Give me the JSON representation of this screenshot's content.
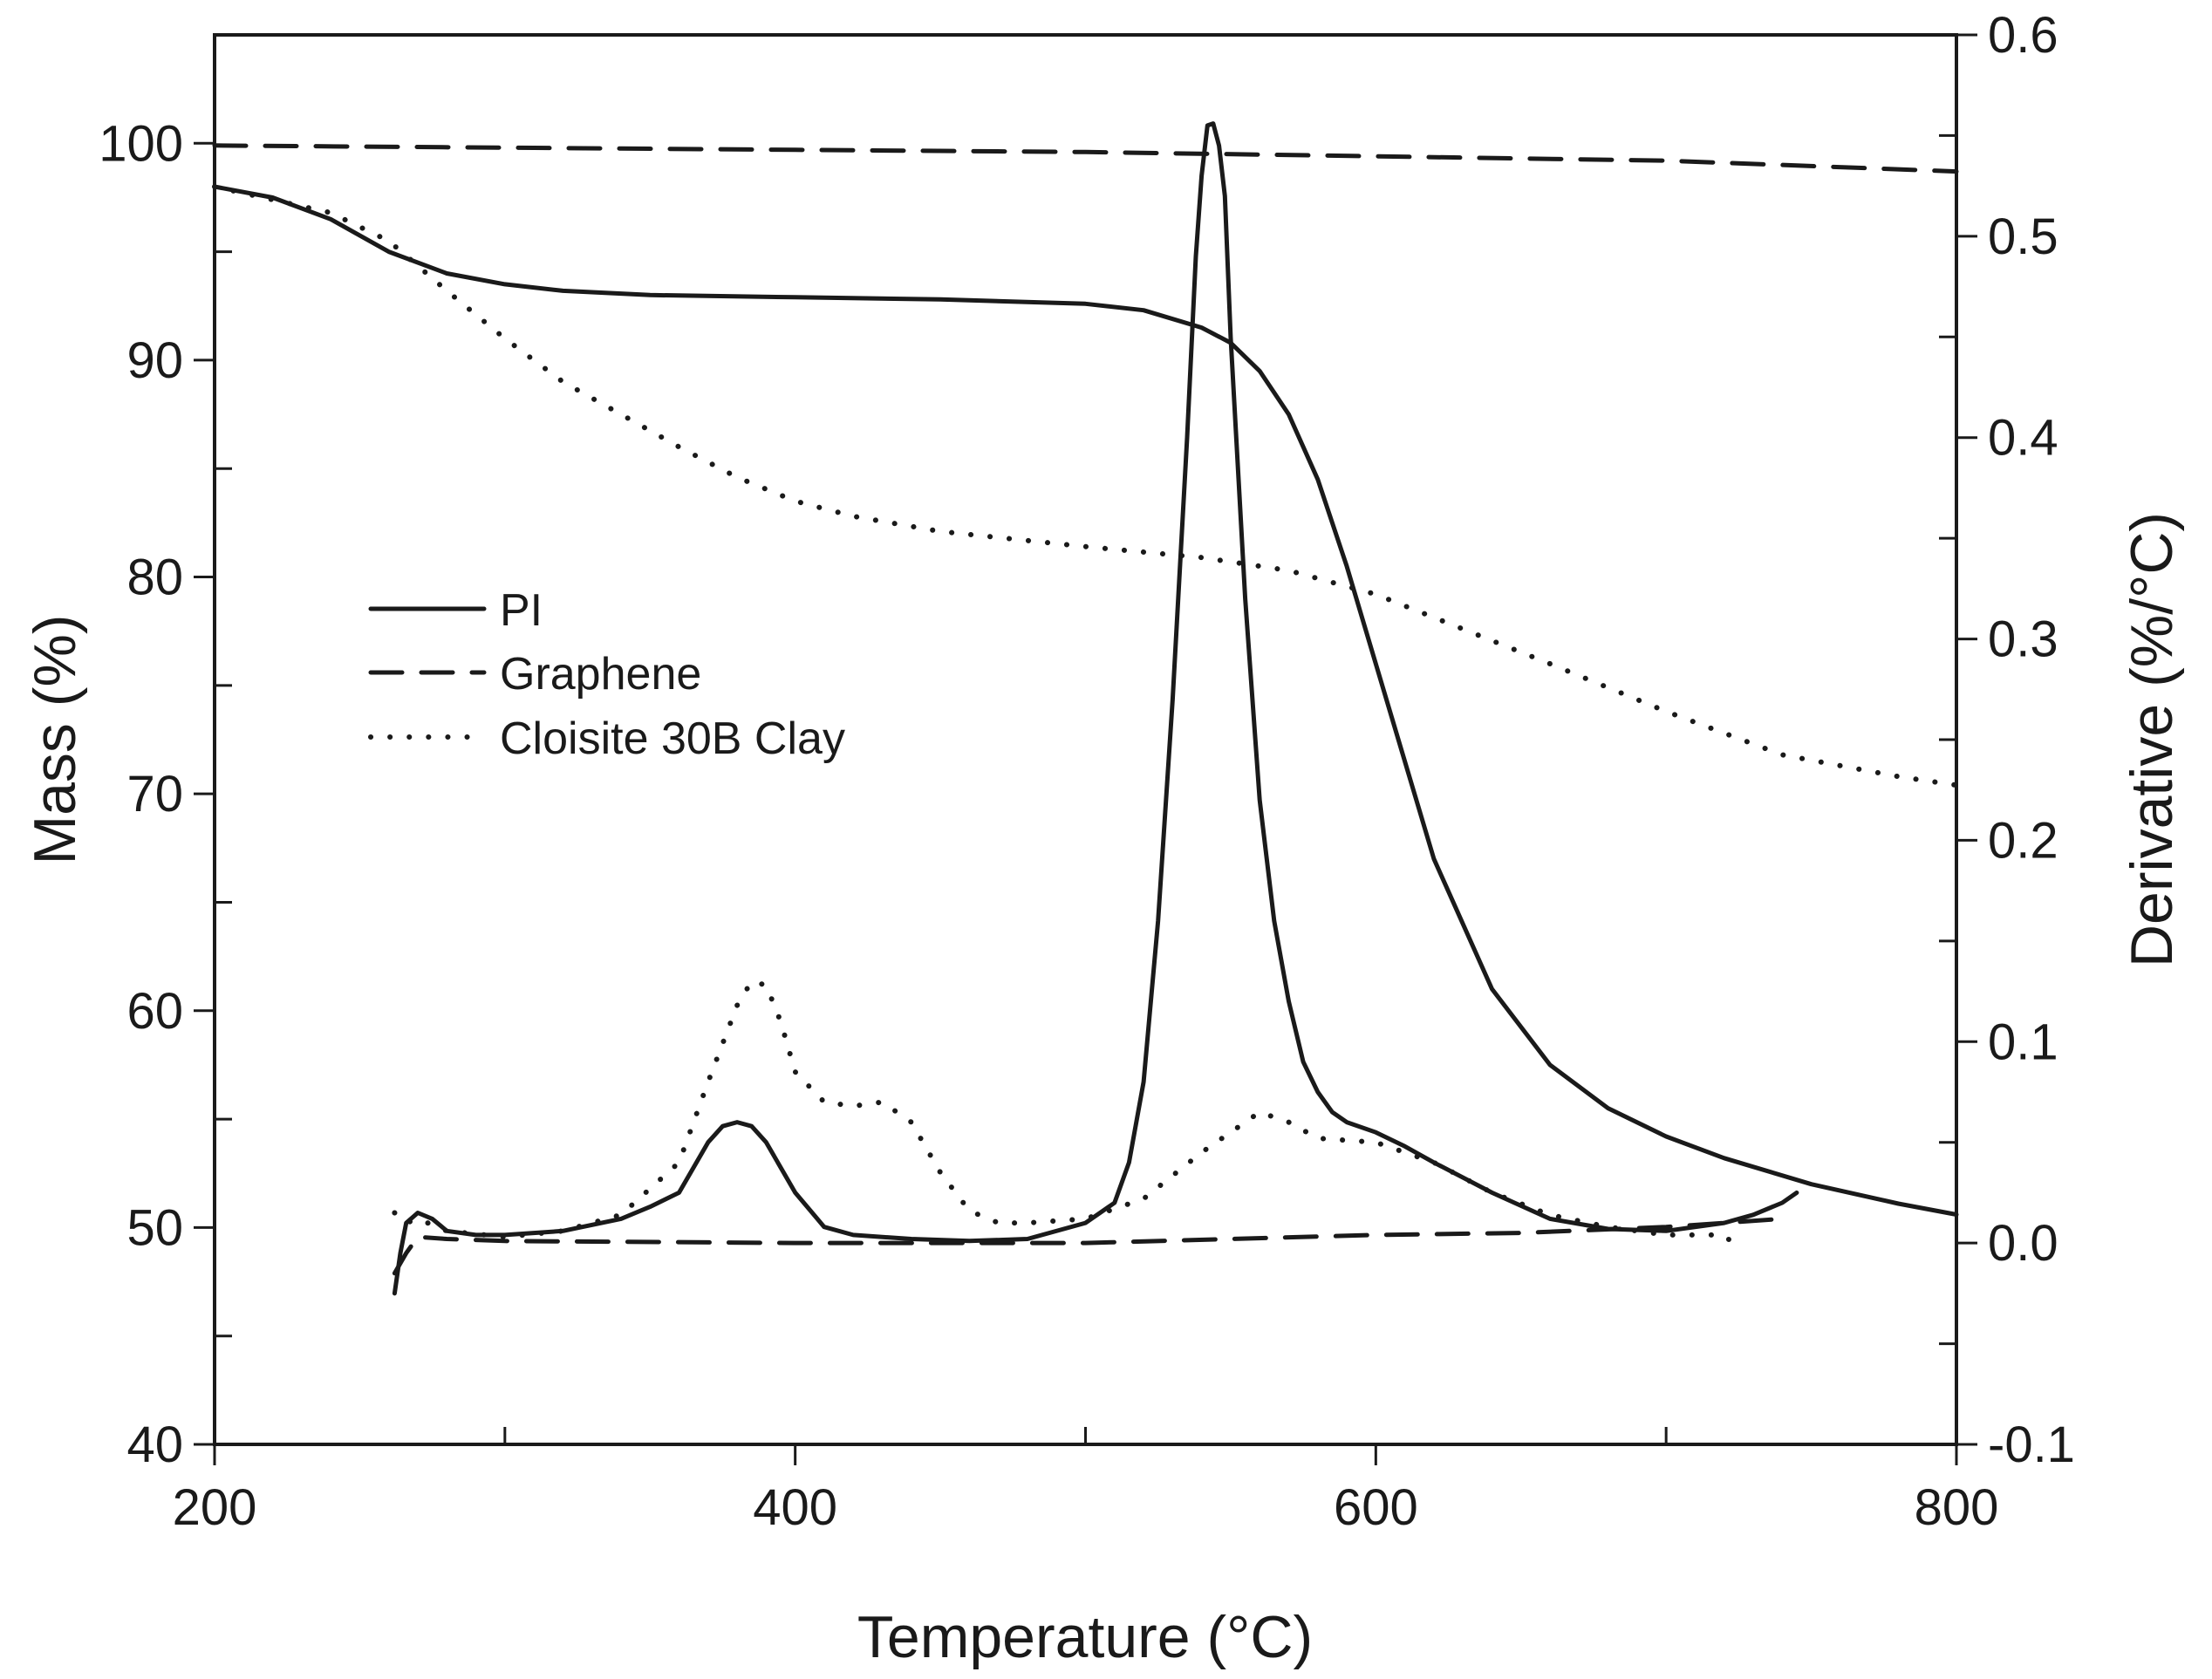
{
  "chart_data": {
    "type": "line",
    "xlabel": "Temperature (°C)",
    "ylabel_left": "Mass  (%)",
    "ylabel_right": "Derivative (%/°C)",
    "xlim": [
      200,
      800
    ],
    "ylim_left": [
      40,
      105
    ],
    "ylim_right": [
      -0.1,
      0.6
    ],
    "x_ticks": [
      "200",
      "400",
      "600",
      "800"
    ],
    "y_left_ticks": [
      "40",
      "50",
      "60",
      "70",
      "80",
      "90",
      "100"
    ],
    "y_right_ticks": [
      "-0.1",
      "0.0",
      "0.1",
      "0.2",
      "0.3",
      "0.4",
      "0.5",
      "0.6"
    ],
    "legend": [
      {
        "name": "PI",
        "style": "solid"
      },
      {
        "name": "Graphene",
        "style": "dashed"
      },
      {
        "name": "Cloisite 30B Clay",
        "style": "dotted"
      }
    ],
    "legend_position": "left-middle",
    "series": [
      {
        "name": "PI",
        "kind": "mass",
        "axis": "left",
        "style": "solid",
        "x": [
          200,
          220,
          240,
          260,
          280,
          300,
          320,
          350,
          400,
          450,
          500,
          520,
          540,
          550,
          560,
          570,
          580,
          590,
          600,
          610,
          620,
          640,
          660,
          680,
          700,
          720,
          750,
          780,
          800
        ],
        "y": [
          98,
          97.5,
          96.5,
          95,
          94,
          93.5,
          93.2,
          93,
          92.9,
          92.8,
          92.6,
          92.3,
          91.5,
          90.8,
          89.5,
          87.5,
          84.5,
          80.5,
          76,
          71.5,
          67,
          61,
          57.5,
          55.5,
          54.2,
          53.2,
          52,
          51.1,
          50.6
        ]
      },
      {
        "name": "Graphene",
        "kind": "mass",
        "axis": "left",
        "style": "dashed",
        "x": [
          200,
          300,
          400,
          500,
          600,
          700,
          800
        ],
        "y": [
          99.9,
          99.8,
          99.7,
          99.6,
          99.4,
          99.2,
          98.7
        ]
      },
      {
        "name": "Cloisite 30B Clay",
        "kind": "mass",
        "axis": "left",
        "style": "dotted",
        "x": [
          200,
          240,
          260,
          280,
          300,
          320,
          340,
          360,
          380,
          400,
          420,
          450,
          500,
          540,
          570,
          600,
          630,
          660,
          700,
          740,
          780,
          800
        ],
        "y": [
          98,
          96.8,
          95.5,
          93.2,
          91,
          89,
          87.5,
          86,
          84.6,
          83.5,
          82.8,
          82.1,
          81.4,
          80.9,
          80.3,
          79.2,
          77.6,
          76,
          73.8,
          71.8,
          70.8,
          70.4
        ]
      },
      {
        "name": "PI",
        "kind": "derivative",
        "axis": "right",
        "style": "solid",
        "x": [
          262,
          264,
          266,
          270,
          275,
          280,
          290,
          300,
          320,
          340,
          350,
          360,
          370,
          375,
          380,
          385,
          390,
          400,
          410,
          420,
          440,
          460,
          480,
          500,
          510,
          515,
          520,
          525,
          530,
          535,
          538,
          540,
          542,
          544,
          546,
          548,
          550,
          555,
          560,
          565,
          570,
          575,
          580,
          585,
          590,
          600,
          610,
          620,
          640,
          660,
          680,
          700,
          720,
          730,
          740,
          745
        ],
        "y": [
          -0.025,
          -0.005,
          0.01,
          0.015,
          0.012,
          0.006,
          0.004,
          0.004,
          0.006,
          0.012,
          0.018,
          0.025,
          0.05,
          0.058,
          0.06,
          0.058,
          0.05,
          0.025,
          0.008,
          0.004,
          0.002,
          0.001,
          0.002,
          0.01,
          0.02,
          0.04,
          0.08,
          0.16,
          0.27,
          0.4,
          0.49,
          0.53,
          0.555,
          0.556,
          0.545,
          0.52,
          0.45,
          0.32,
          0.22,
          0.16,
          0.12,
          0.09,
          0.075,
          0.065,
          0.06,
          0.055,
          0.048,
          0.04,
          0.025,
          0.012,
          0.007,
          0.006,
          0.01,
          0.014,
          0.02,
          0.025
        ]
      },
      {
        "name": "Graphene",
        "kind": "derivative",
        "axis": "right",
        "style": "dashed",
        "x": [
          262,
          266,
          270,
          280,
          300,
          400,
          500,
          550,
          600,
          650,
          700,
          740
        ],
        "y": [
          -0.015,
          -0.005,
          0.003,
          0.002,
          0.001,
          0,
          0,
          0.002,
          0.004,
          0.005,
          0.008,
          0.012
        ]
      },
      {
        "name": "Cloisite 30B Clay",
        "kind": "derivative",
        "axis": "right",
        "style": "dotted",
        "x": [
          262,
          266,
          270,
          280,
          300,
          320,
          340,
          360,
          370,
          380,
          385,
          390,
          395,
          400,
          410,
          420,
          430,
          440,
          450,
          460,
          470,
          480,
          500,
          520,
          540,
          560,
          570,
          580,
          600,
          620,
          640,
          660,
          680,
          700,
          720,
          725
        ],
        "y": [
          0.015,
          0.01,
          0.012,
          0.006,
          0.003,
          0.006,
          0.014,
          0.04,
          0.08,
          0.118,
          0.13,
          0.128,
          0.11,
          0.085,
          0.07,
          0.068,
          0.07,
          0.06,
          0.035,
          0.016,
          0.01,
          0.01,
          0.012,
          0.022,
          0.045,
          0.065,
          0.06,
          0.052,
          0.05,
          0.04,
          0.025,
          0.014,
          0.008,
          0.004,
          0.004,
          -0.003
        ]
      }
    ]
  }
}
